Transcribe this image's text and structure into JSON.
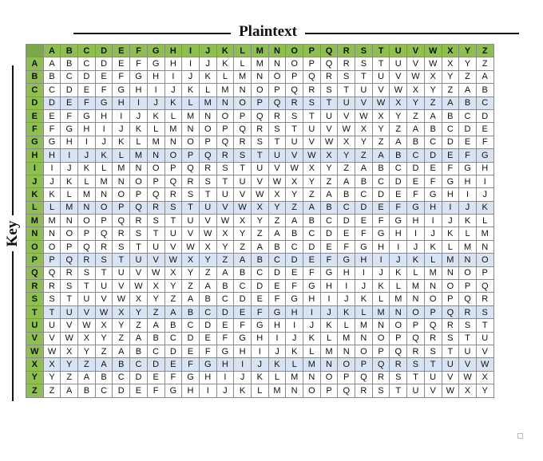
{
  "header_label": "Plaintext",
  "side_label": "Key",
  "letters": [
    "A",
    "B",
    "C",
    "D",
    "E",
    "F",
    "G",
    "H",
    "I",
    "J",
    "K",
    "L",
    "M",
    "N",
    "O",
    "P",
    "Q",
    "R",
    "S",
    "T",
    "U",
    "V",
    "W",
    "X",
    "Y",
    "Z"
  ],
  "colors": {
    "header_bg": "#8fbf4f",
    "highlight_row": "#d8e3f3",
    "grid_line": "#8a8a8a"
  },
  "highlighted_rows": [
    "D",
    "H",
    "L",
    "P",
    "T",
    "X"
  ]
}
